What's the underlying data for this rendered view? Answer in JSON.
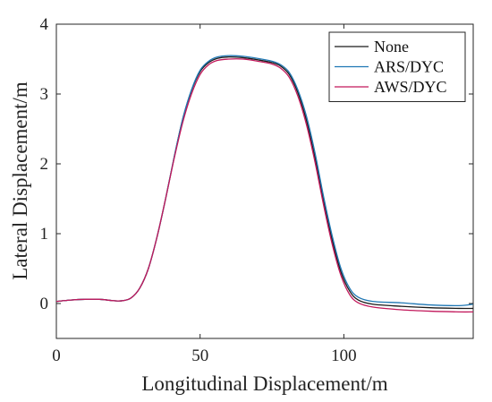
{
  "chart_data": {
    "type": "line",
    "xlabel": "Longitudinal Displacement/m",
    "ylabel": "Lateral Displacement/m",
    "xlim": [
      0,
      145
    ],
    "ylim": [
      -0.5,
      4
    ],
    "xticks": [
      0,
      50,
      100
    ],
    "yticks": [
      0,
      1,
      2,
      3,
      4
    ],
    "grid": false,
    "legend_position": "top-right",
    "series": [
      {
        "name": "None",
        "color": "#1a1a1a",
        "x": [
          0,
          5,
          10,
          15,
          20,
          23,
          26,
          29,
          32,
          35,
          38,
          41,
          44,
          47,
          50,
          53,
          56,
          60,
          65,
          70,
          75,
          78,
          81,
          84,
          87,
          90,
          93,
          96,
          99,
          102,
          105,
          110,
          120,
          130,
          140,
          145
        ],
        "y": [
          0.03,
          0.05,
          0.06,
          0.06,
          0.04,
          0.04,
          0.08,
          0.22,
          0.5,
          0.95,
          1.5,
          2.1,
          2.65,
          3.05,
          3.32,
          3.45,
          3.51,
          3.53,
          3.52,
          3.49,
          3.45,
          3.4,
          3.28,
          3.02,
          2.62,
          2.08,
          1.45,
          0.9,
          0.45,
          0.18,
          0.05,
          -0.01,
          -0.04,
          -0.06,
          -0.07,
          -0.07
        ]
      },
      {
        "name": "ARS/DYC",
        "color": "#1f77b4",
        "x": [
          0,
          5,
          10,
          15,
          20,
          23,
          26,
          29,
          32,
          35,
          38,
          41,
          44,
          47,
          50,
          53,
          56,
          60,
          65,
          70,
          75,
          78,
          81,
          84,
          87,
          90,
          93,
          96,
          99,
          102,
          105,
          110,
          120,
          130,
          140,
          145
        ],
        "y": [
          0.03,
          0.05,
          0.06,
          0.06,
          0.04,
          0.04,
          0.08,
          0.22,
          0.5,
          0.95,
          1.5,
          2.1,
          2.65,
          3.06,
          3.34,
          3.47,
          3.53,
          3.55,
          3.54,
          3.51,
          3.47,
          3.42,
          3.31,
          3.06,
          2.68,
          2.15,
          1.52,
          0.96,
          0.5,
          0.22,
          0.09,
          0.03,
          0.01,
          -0.02,
          -0.03,
          -0.01
        ]
      },
      {
        "name": "AWS/DYC",
        "color": "#c2185b",
        "x": [
          0,
          5,
          10,
          15,
          20,
          23,
          26,
          29,
          32,
          35,
          38,
          41,
          44,
          47,
          50,
          53,
          56,
          60,
          65,
          70,
          75,
          78,
          81,
          84,
          87,
          90,
          93,
          96,
          99,
          102,
          105,
          110,
          120,
          130,
          140,
          145
        ],
        "y": [
          0.03,
          0.05,
          0.06,
          0.06,
          0.04,
          0.04,
          0.08,
          0.22,
          0.5,
          0.95,
          1.5,
          2.08,
          2.6,
          3.0,
          3.28,
          3.42,
          3.48,
          3.5,
          3.5,
          3.47,
          3.43,
          3.37,
          3.24,
          2.97,
          2.56,
          2.02,
          1.4,
          0.84,
          0.4,
          0.13,
          0.01,
          -0.05,
          -0.09,
          -0.11,
          -0.12,
          -0.12
        ]
      }
    ]
  }
}
